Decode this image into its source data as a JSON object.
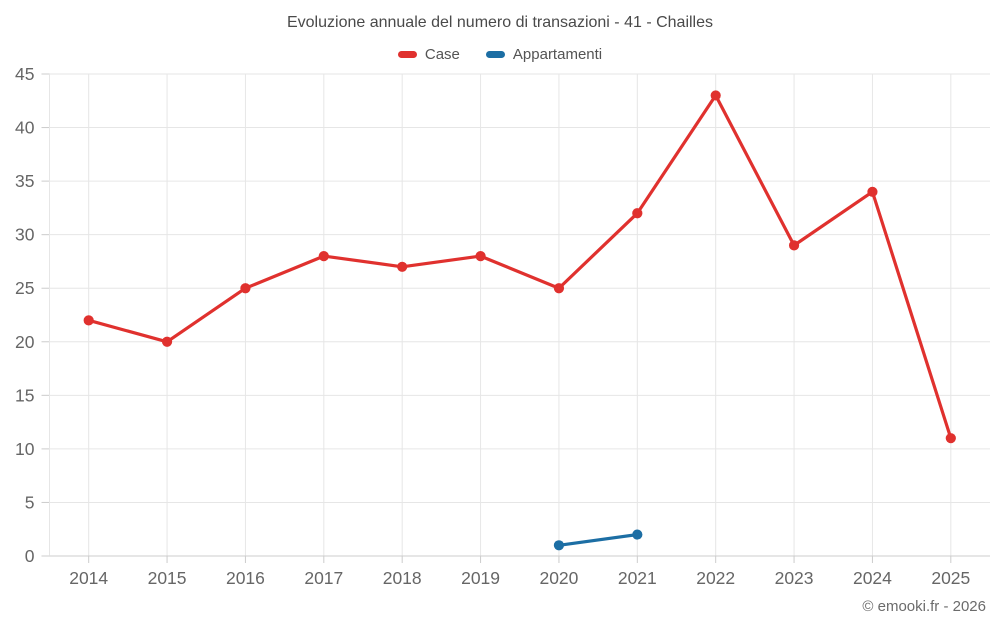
{
  "title": "Evoluzione annuale del numero di transazioni - 41 - Chailles",
  "copyright": "© emooki.fr - 2026",
  "legend": [
    {
      "label": "Case",
      "color": "#e0312e"
    },
    {
      "label": "Appartamenti",
      "color": "#1c6ea4"
    }
  ],
  "colors": {
    "grid": "#e6e6e6",
    "axis_line": "#cccccc",
    "tick": "#cccccc",
    "axis_text": "#666666",
    "title_text": "#4a4a4a",
    "background": "#ffffff"
  },
  "chart_data": {
    "type": "line",
    "title": "Evoluzione annuale del numero di transazioni - 41 - Chailles",
    "categories": [
      "2014",
      "2015",
      "2016",
      "2017",
      "2018",
      "2019",
      "2020",
      "2021",
      "2022",
      "2023",
      "2024",
      "2025"
    ],
    "series": [
      {
        "name": "Case",
        "color": "#e0312e",
        "values": [
          22,
          20,
          25,
          28,
          27,
          28,
          25,
          32,
          43,
          29,
          34,
          11
        ]
      },
      {
        "name": "Appartamenti",
        "color": "#1c6ea4",
        "values": [
          null,
          null,
          null,
          null,
          null,
          null,
          1,
          2,
          null,
          null,
          null,
          null
        ]
      }
    ],
    "xlabel": "",
    "ylabel": "",
    "ylim": [
      0,
      45
    ],
    "ytick_step": 5,
    "grid": true,
    "legend_position": "top",
    "annotations": [
      "© emooki.fr - 2026"
    ]
  }
}
